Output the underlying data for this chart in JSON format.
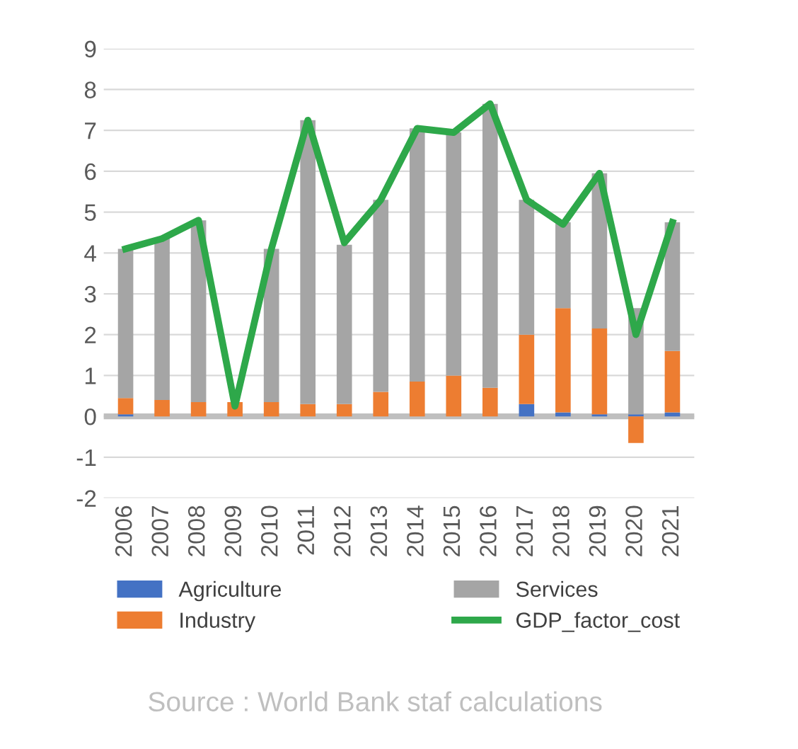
{
  "chart_data": {
    "type": "bar",
    "stacked": true,
    "categories": [
      "2006",
      "2007",
      "2008",
      "2009",
      "2010",
      "2011",
      "2012",
      "2013",
      "2014",
      "2015",
      "2016",
      "2017",
      "2018",
      "2019",
      "2020",
      "2021"
    ],
    "series": [
      {
        "name": "Agriculture",
        "color": "#4472c4",
        "values": [
          0.05,
          0,
          0,
          0,
          0,
          0,
          0,
          0,
          0,
          0,
          0,
          0.3,
          0.1,
          0.05,
          0.05,
          0.1
        ]
      },
      {
        "name": "Industry",
        "color": "#ed7d31",
        "values": [
          0.4,
          0.4,
          0.35,
          0.35,
          0.35,
          0.3,
          0.3,
          0.6,
          0.85,
          1.0,
          0.7,
          1.7,
          2.55,
          2.1,
          -0.65,
          1.5
        ]
      },
      {
        "name": "Services",
        "color": "#a5a5a5",
        "values": [
          3.65,
          3.95,
          4.45,
          null,
          3.75,
          6.95,
          3.9,
          4.7,
          6.2,
          5.95,
          6.95,
          3.3,
          2.1,
          3.8,
          2.6,
          3.15
        ]
      },
      {
        "name": "GDP_factor_cost",
        "type": "line",
        "color": "#2ea84a",
        "values": [
          4.1,
          4.35,
          4.8,
          0.25,
          4.1,
          7.25,
          4.25,
          5.3,
          7.05,
          6.95,
          7.65,
          5.3,
          4.7,
          5.95,
          2.0,
          4.75
        ]
      }
    ],
    "ylim": [
      -2,
      9
    ],
    "yticks": [
      -2,
      -1,
      0,
      1,
      2,
      3,
      4,
      5,
      6,
      7,
      8,
      9
    ],
    "grid": "y",
    "legend": "bottom",
    "annotations": [
      "Source : World Bank staf calculations"
    ]
  }
}
